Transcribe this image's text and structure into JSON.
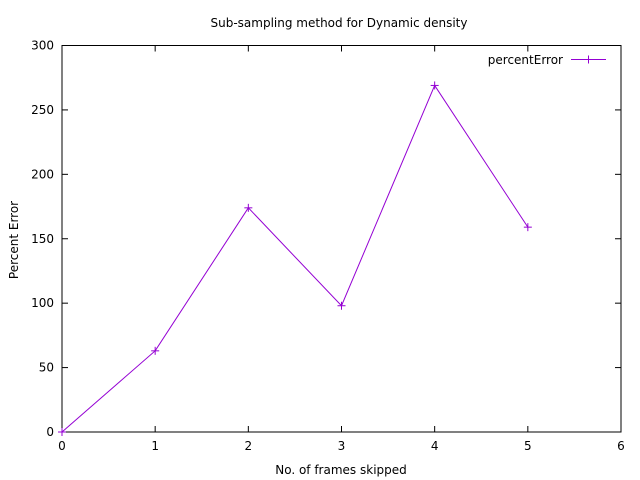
{
  "chart_data": {
    "type": "line",
    "title": "Sub-sampling method for Dynamic density",
    "xlabel": "No. of frames skipped",
    "ylabel": "Percent Error",
    "xlim": [
      0,
      6
    ],
    "ylim": [
      0,
      300
    ],
    "xticks": [
      0,
      1,
      2,
      3,
      4,
      5,
      6
    ],
    "yticks": [
      0,
      50,
      100,
      150,
      200,
      250,
      300
    ],
    "grid": false,
    "legend_position": "top-right",
    "series": [
      {
        "name": "percentError",
        "color": "#9400d3",
        "marker": "plus",
        "x": [
          0,
          1,
          2,
          3,
          4,
          5
        ],
        "y": [
          0,
          63,
          174,
          98,
          269,
          159
        ]
      }
    ]
  }
}
